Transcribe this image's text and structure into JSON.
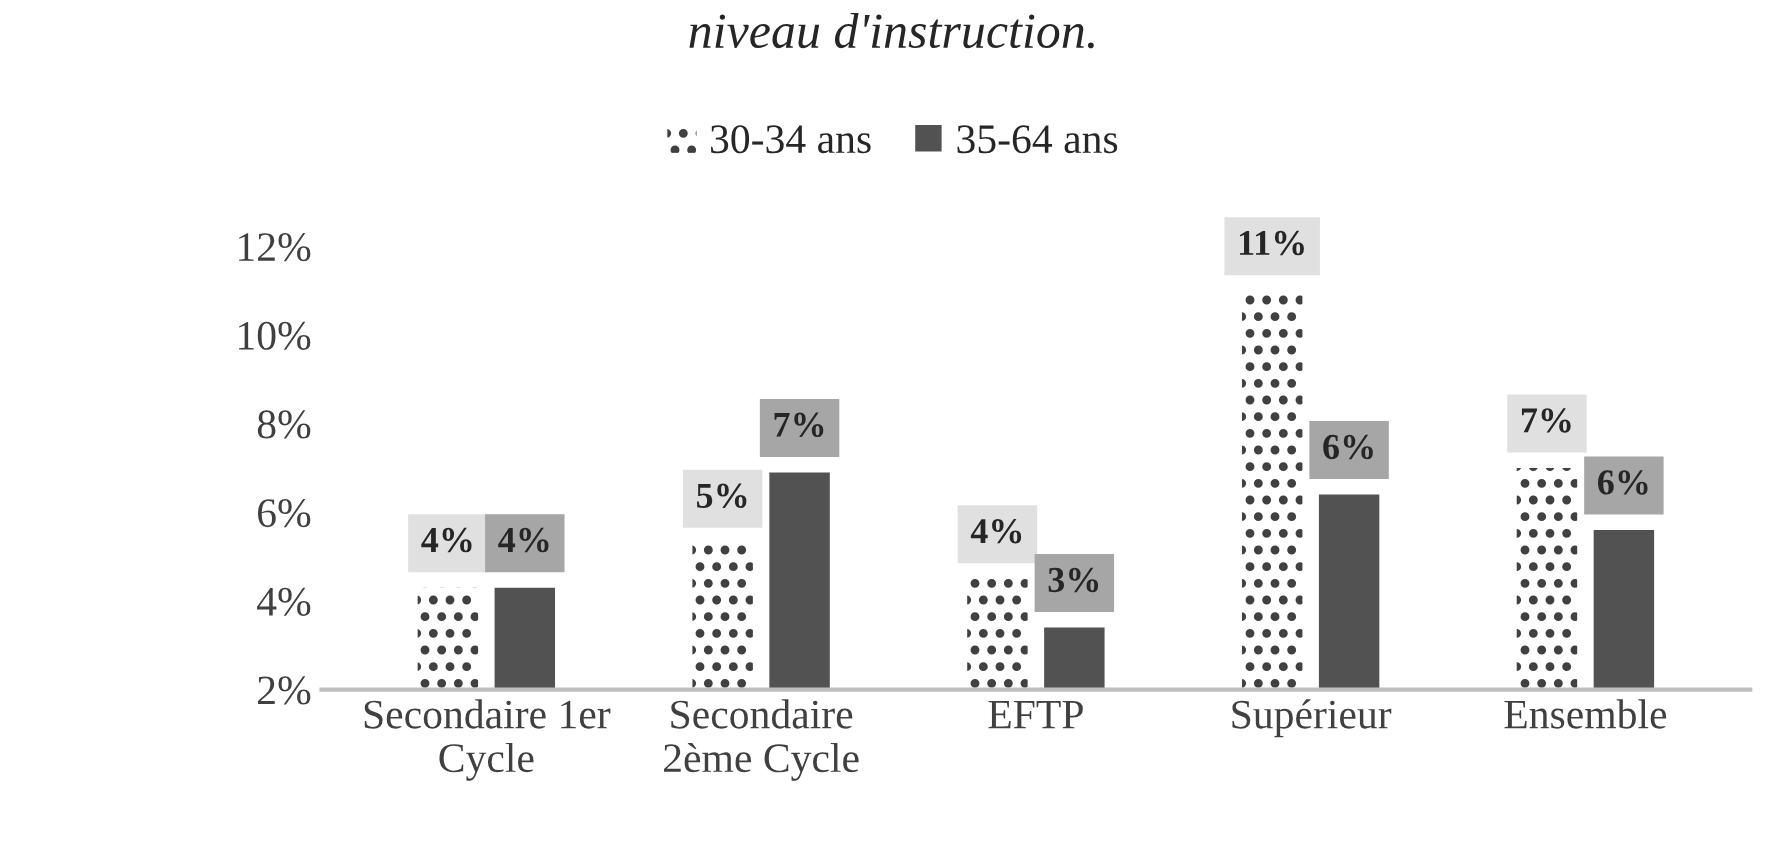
{
  "chart_data": {
    "type": "bar",
    "title": "niveau d'instruction.",
    "categories": [
      "Secondaire 1er\nCycle",
      "Secondaire\n2ème Cycle",
      "EFTP",
      "Supérieur",
      "Ensemble"
    ],
    "series": [
      {
        "name": "30-34 ans",
        "color": "#404040",
        "values": [
          4.3,
          5.3,
          4.5,
          11.0,
          7.0
        ],
        "value_labels": [
          "4%",
          "5%",
          "4%",
          "11%",
          "7%"
        ]
      },
      {
        "name": "35-64 ans",
        "color": "#525252",
        "values": [
          4.3,
          6.9,
          3.4,
          6.4,
          5.6
        ],
        "value_labels": [
          "4%",
          "7%",
          "3%",
          "6%",
          "6%"
        ]
      }
    ],
    "ylim": [
      2,
      12.5
    ],
    "yticks": [
      {
        "value": 2,
        "label": "2%"
      },
      {
        "value": 4,
        "label": "4%"
      },
      {
        "value": 6,
        "label": "6%"
      },
      {
        "value": 8,
        "label": "8%"
      },
      {
        "value": 10,
        "label": "10%"
      },
      {
        "value": 12,
        "label": "12%"
      }
    ],
    "grid": false,
    "legend": "top"
  }
}
